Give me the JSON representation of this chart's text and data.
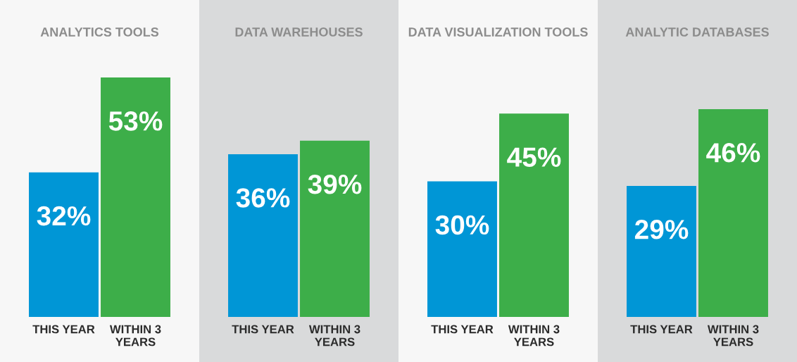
{
  "chart_data": [
    {
      "type": "bar",
      "title": "ANALYTICS TOOLS",
      "categories": [
        "THIS YEAR",
        "WITHIN 3\nYEARS"
      ],
      "values": [
        32,
        53
      ],
      "colors": [
        "#0096d6",
        "#3dae49"
      ],
      "value_labels": [
        "32%",
        "53%"
      ]
    },
    {
      "type": "bar",
      "title": "DATA WAREHOUSES",
      "categories": [
        "THIS YEAR",
        "WITHIN 3\nYEARS"
      ],
      "values": [
        36,
        39
      ],
      "colors": [
        "#0096d6",
        "#3dae49"
      ],
      "value_labels": [
        "36%",
        "39%"
      ]
    },
    {
      "type": "bar",
      "title": "DATA VISUALIZATION TOOLS",
      "categories": [
        "THIS YEAR",
        "WITHIN 3\nYEARS"
      ],
      "values": [
        30,
        45
      ],
      "colors": [
        "#0096d6",
        "#3dae49"
      ],
      "value_labels": [
        "30%",
        "45%"
      ]
    },
    {
      "type": "bar",
      "title": "ANALYTIC DATABASES",
      "categories": [
        "THIS YEAR",
        "WITHIN 3\nYEARS"
      ],
      "values": [
        29,
        46
      ],
      "colors": [
        "#0096d6",
        "#3dae49"
      ],
      "value_labels": [
        "29%",
        "46%"
      ]
    }
  ]
}
